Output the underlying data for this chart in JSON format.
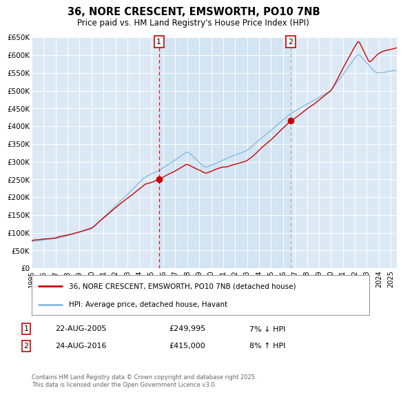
{
  "title": "36, NORE CRESCENT, EMSWORTH, PO10 7NB",
  "subtitle": "Price paid vs. HM Land Registry's House Price Index (HPI)",
  "ylabel_ticks": [
    "£0",
    "£50K",
    "£100K",
    "£150K",
    "£200K",
    "£250K",
    "£300K",
    "£350K",
    "£400K",
    "£450K",
    "£500K",
    "£550K",
    "£600K",
    "£650K"
  ],
  "ytick_vals": [
    0,
    50000,
    100000,
    150000,
    200000,
    250000,
    300000,
    350000,
    400000,
    450000,
    500000,
    550000,
    600000,
    650000
  ],
  "ylim": [
    0,
    650000
  ],
  "xlim_start": 1995,
  "xlim_end": 2025.5,
  "sale1_year": 2005.64,
  "sale1_price": 249995,
  "sale2_year": 2016.64,
  "sale2_price": 415000,
  "legend1": "36, NORE CRESCENT, EMSWORTH, PO10 7NB (detached house)",
  "legend2": "HPI: Average price, detached house, Havant",
  "annotation1_label": "1",
  "annotation1_date": "22-AUG-2005",
  "annotation1_price": "£249,995",
  "annotation1_change": "7% ↓ HPI",
  "annotation2_label": "2",
  "annotation2_date": "24-AUG-2016",
  "annotation2_price": "£415,000",
  "annotation2_change": "8% ↑ HPI",
  "footer": "Contains HM Land Registry data © Crown copyright and database right 2025.\nThis data is licensed under the Open Government Licence v3.0.",
  "bg_color": "#dce9f5",
  "bg_color_highlight": "#cce0f0",
  "hpi_color": "#88bbdd",
  "price_color": "#cc0000",
  "dashed_color": "#cc0000",
  "dashed_color2": "#8899aa",
  "grid_color": "#ffffff",
  "box_color": "#cc0000"
}
